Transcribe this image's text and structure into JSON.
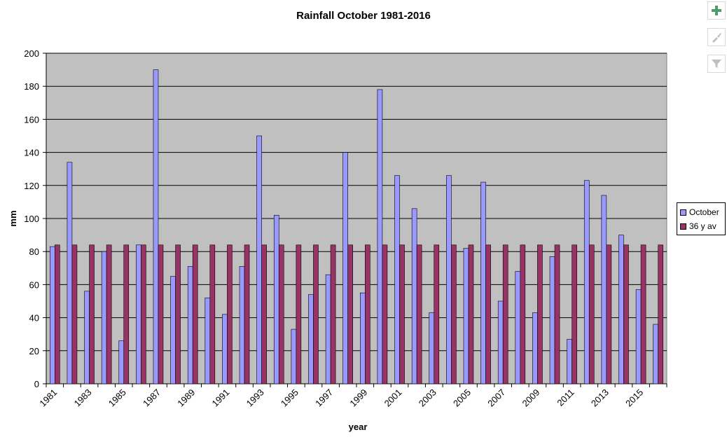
{
  "colors": {
    "plot_bg": "#c0c0c0",
    "october": "#9999ff",
    "average": "#993366",
    "plus": "#4c9e6e",
    "muted_icon": "#bfbfbf"
  },
  "icons": {
    "add": "plus-icon",
    "style": "brush-icon",
    "filter": "filter-icon"
  },
  "chart_data": {
    "type": "bar",
    "title": "Rainfall October 1981-2016",
    "xlabel": "year",
    "ylabel": "mm",
    "ylim": [
      0,
      200
    ],
    "yticks": [
      0,
      20,
      40,
      60,
      80,
      100,
      120,
      140,
      160,
      180,
      200
    ],
    "grid": true,
    "legend": "right",
    "categories": [
      "1981",
      "1982",
      "1983",
      "1984",
      "1985",
      "1986",
      "1987",
      "1988",
      "1989",
      "1990",
      "1991",
      "1992",
      "1993",
      "1994",
      "1995",
      "1996",
      "1997",
      "1998",
      "1999",
      "2000",
      "2001",
      "2002",
      "2003",
      "2004",
      "2005",
      "2006",
      "2007",
      "2008",
      "2009",
      "2010",
      "2011",
      "2012",
      "2013",
      "2014",
      "2015",
      "2016"
    ],
    "xtick_labels": [
      "1981",
      "1983",
      "1985",
      "1987",
      "1989",
      "1991",
      "1993",
      "1995",
      "1997",
      "1999",
      "2001",
      "2003",
      "2005",
      "2007",
      "2009",
      "2011",
      "2013",
      "2015"
    ],
    "series": [
      {
        "name": "October",
        "values": [
          83,
          134,
          56,
          80,
          26,
          84,
          190,
          65,
          71,
          52,
          42,
          71,
          150,
          102,
          33,
          54,
          66,
          140,
          55,
          178,
          126,
          106,
          43,
          126,
          82,
          122,
          50,
          68,
          43,
          77,
          27,
          123,
          114,
          90,
          57,
          36
        ]
      },
      {
        "name": "36 y av",
        "values": [
          84,
          84,
          84,
          84,
          84,
          84,
          84,
          84,
          84,
          84,
          84,
          84,
          84,
          84,
          84,
          84,
          84,
          84,
          84,
          84,
          84,
          84,
          84,
          84,
          84,
          84,
          84,
          84,
          84,
          84,
          84,
          84,
          84,
          84,
          84,
          84
        ]
      }
    ]
  }
}
